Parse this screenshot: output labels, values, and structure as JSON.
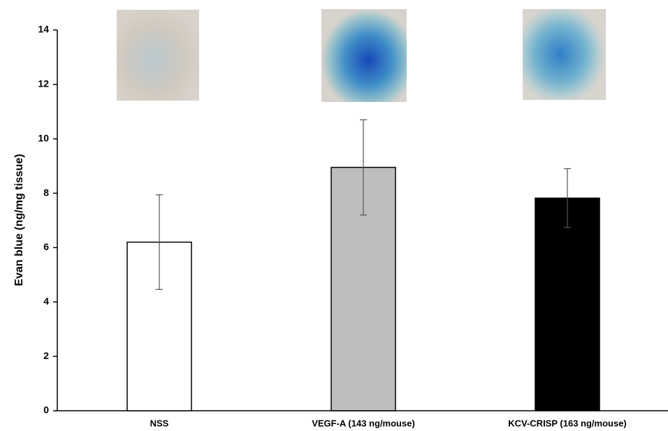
{
  "chart_data": {
    "type": "bar",
    "y_label": "Evan blue (ng/mg tissue)",
    "categories": [
      "NSS",
      "VEGF-A (143 ng/mouse)",
      "KCV-CRISP (163 ng/mouse)"
    ],
    "values": [
      6.2,
      8.95,
      7.82
    ],
    "errors": [
      1.74,
      1.75,
      1.08
    ],
    "colors": [
      "#ffffff",
      "#bebebe",
      "#000000"
    ],
    "ylim": [
      0,
      14
    ],
    "yticks": [
      0,
      2,
      4,
      6,
      8,
      10,
      12,
      14
    ]
  }
}
